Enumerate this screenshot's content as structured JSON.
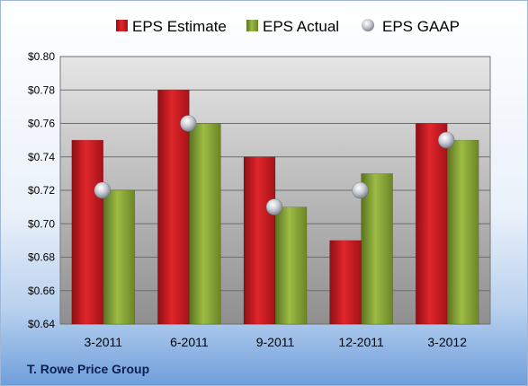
{
  "chart_data": {
    "type": "bar",
    "categories": [
      "3-2011",
      "6-2011",
      "9-2011",
      "12-2011",
      "3-2012"
    ],
    "series": [
      {
        "name": "EPS Estimate",
        "values": [
          0.75,
          0.78,
          0.74,
          0.69,
          0.76
        ],
        "color": "#c0191f"
      },
      {
        "name": "EPS Actual",
        "values": [
          0.72,
          0.76,
          0.71,
          0.73,
          0.75
        ],
        "color": "#7f9b2c"
      }
    ],
    "markers": {
      "name": "EPS GAAP",
      "values": [
        0.72,
        0.76,
        0.71,
        0.72,
        0.75
      ],
      "color": "#b0b6c2"
    },
    "ylim": [
      0.64,
      0.8
    ],
    "yticks": [
      "$0.64",
      "$0.66",
      "$0.68",
      "$0.70",
      "$0.72",
      "$0.74",
      "$0.76",
      "$0.78",
      "$0.80"
    ],
    "ytick_values": [
      0.64,
      0.66,
      0.68,
      0.7,
      0.72,
      0.74,
      0.76,
      0.78,
      0.8
    ],
    "grid": true,
    "legend_position": "top"
  },
  "footer_label": "T. Rowe Price Group"
}
